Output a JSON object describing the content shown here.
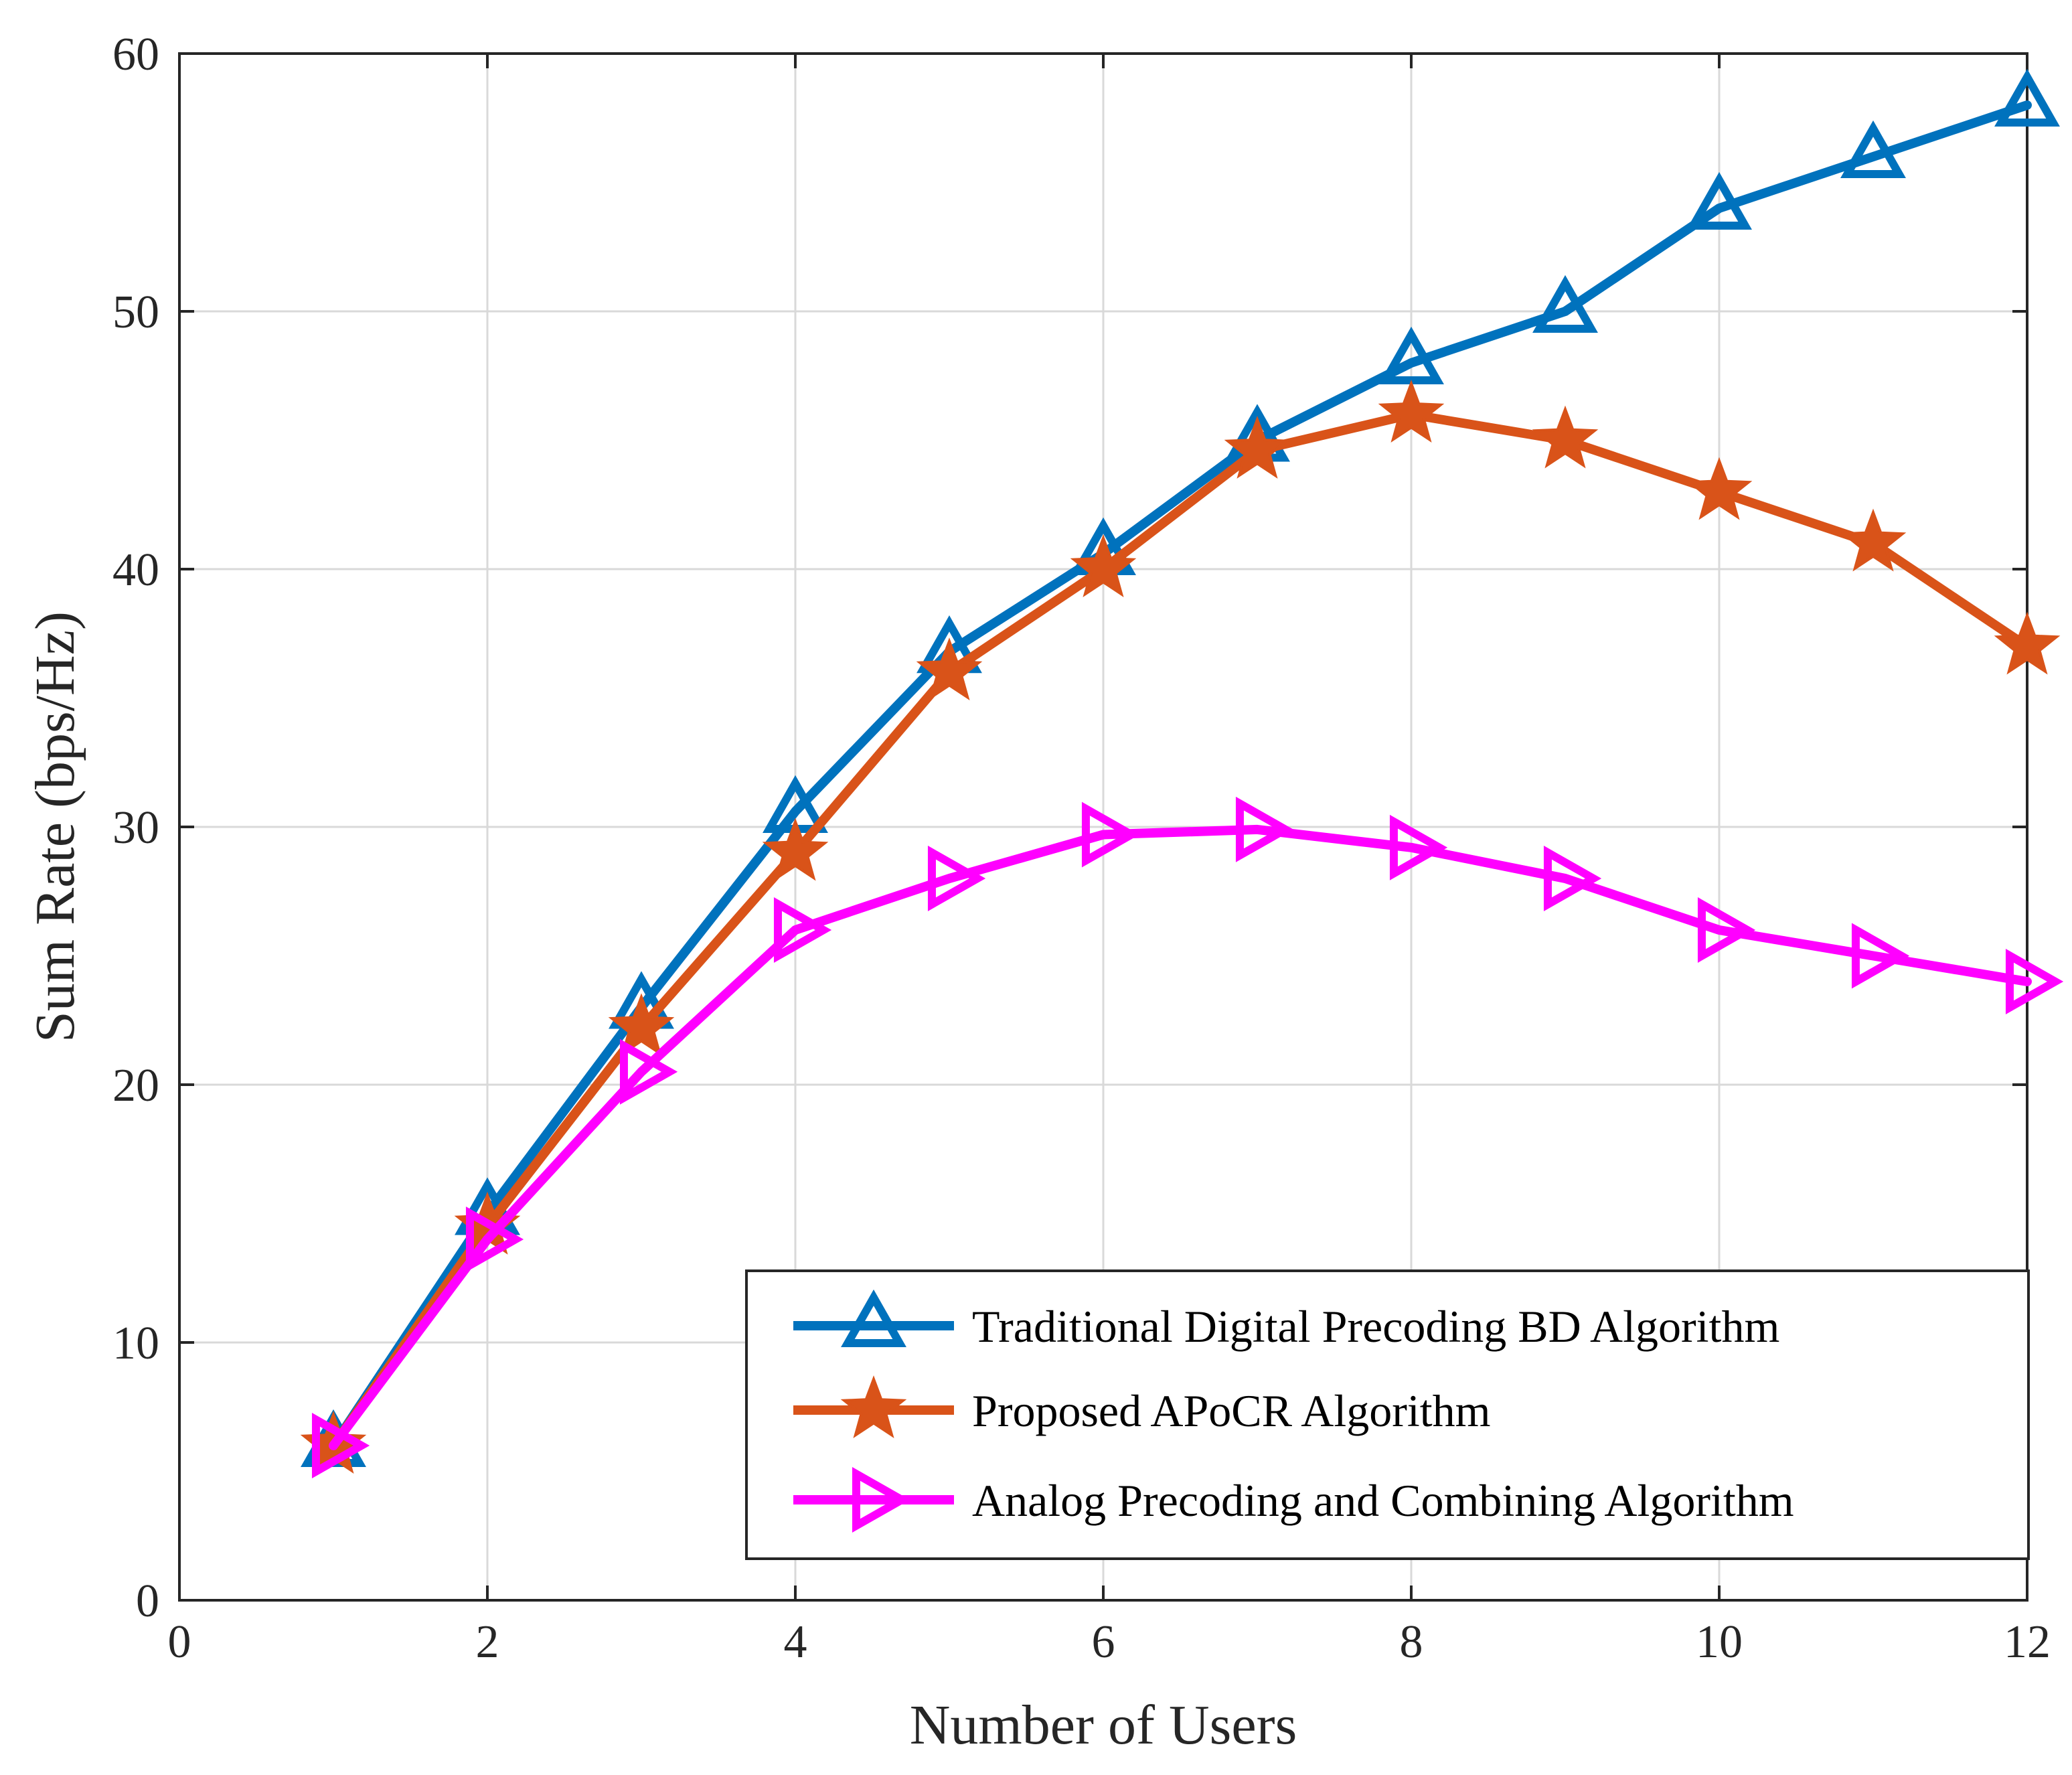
{
  "chart_data": {
    "type": "line",
    "title": "",
    "xlabel": "Number of Users",
    "ylabel": "Sum Rate (bps/Hz)",
    "xlim": [
      0,
      12
    ],
    "ylim": [
      0,
      60
    ],
    "xticks": [
      0,
      2,
      4,
      6,
      8,
      10,
      12
    ],
    "yticks": [
      0,
      10,
      20,
      30,
      40,
      50,
      60
    ],
    "grid": true,
    "legend_position": "bottom-right",
    "x": [
      1,
      2,
      3,
      4,
      5,
      6,
      7,
      8,
      9,
      10,
      11,
      12
    ],
    "series": [
      {
        "name": "Traditional Digital Precoding BD Algorithm",
        "color": "#0072BD",
        "marker": "triangle-up",
        "values": [
          6,
          15,
          23,
          30.6,
          36.8,
          40.6,
          45,
          48,
          50,
          54,
          56,
          58
        ]
      },
      {
        "name": "Proposed APoCR Algorithm",
        "color": "#D95319",
        "marker": "star",
        "values": [
          6,
          14.5,
          22.2,
          29,
          36,
          40,
          44.6,
          46,
          45,
          43,
          41,
          37
        ]
      },
      {
        "name": "Analog Precoding and Combining Algorithm",
        "color": "#FF00FF",
        "marker": "triangle-right",
        "values": [
          6,
          14,
          20.5,
          26,
          28,
          29.7,
          29.9,
          29.2,
          28,
          26,
          25,
          24
        ]
      }
    ]
  }
}
